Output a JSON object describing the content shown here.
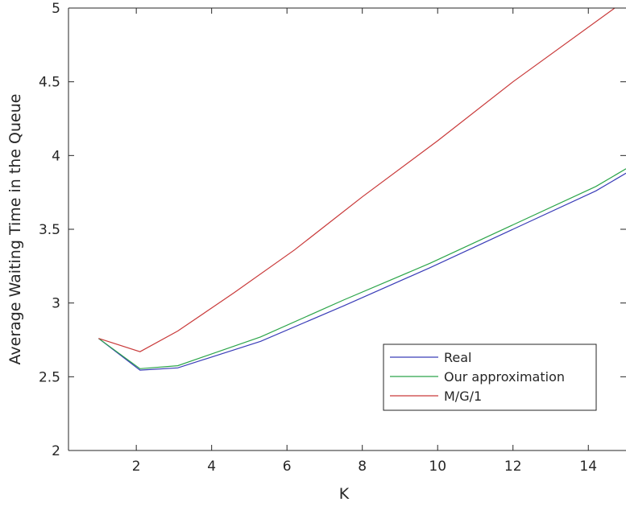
{
  "chart_data": {
    "type": "line",
    "title": "",
    "xlabel": "K",
    "ylabel": "Average Waiting Time in the Queue",
    "xlim": [
      0.2,
      15
    ],
    "ylim": [
      2,
      5
    ],
    "xticks": [
      2,
      4,
      6,
      8,
      10,
      12,
      14
    ],
    "yticks": [
      2,
      2.5,
      3,
      3.5,
      4,
      4.5,
      5
    ],
    "xtick_labels": [
      "2",
      "4",
      "6",
      "8",
      "10",
      "12",
      "14"
    ],
    "ytick_labels": [
      "2",
      "2.5",
      "3",
      "3.5",
      "4",
      "4.5",
      "5"
    ],
    "grid": false,
    "legend_position": "lower-right",
    "series": [
      {
        "name": "Real",
        "color": "#3a3db8",
        "x": [
          1,
          2.1,
          3.1,
          5.3,
          7.5,
          9.8,
          12,
          14.2,
          15
        ],
        "y": [
          2.76,
          2.545,
          2.56,
          2.74,
          2.98,
          3.24,
          3.5,
          3.76,
          3.88
        ]
      },
      {
        "name": "Our approximation",
        "color": "#2ca54a",
        "x": [
          1,
          2.1,
          3.1,
          5.3,
          7.5,
          9.8,
          12,
          14.2,
          15
        ],
        "y": [
          2.76,
          2.555,
          2.575,
          2.77,
          3.02,
          3.27,
          3.53,
          3.79,
          3.91
        ]
      },
      {
        "name": "M/G/1",
        "color": "#c93a3a",
        "x": [
          1,
          2.1,
          3.1,
          4.6,
          6.2,
          8,
          10,
          12,
          14.7
        ],
        "y": [
          2.76,
          2.67,
          2.81,
          3.07,
          3.36,
          3.72,
          4.1,
          4.5,
          5.0
        ]
      }
    ]
  }
}
